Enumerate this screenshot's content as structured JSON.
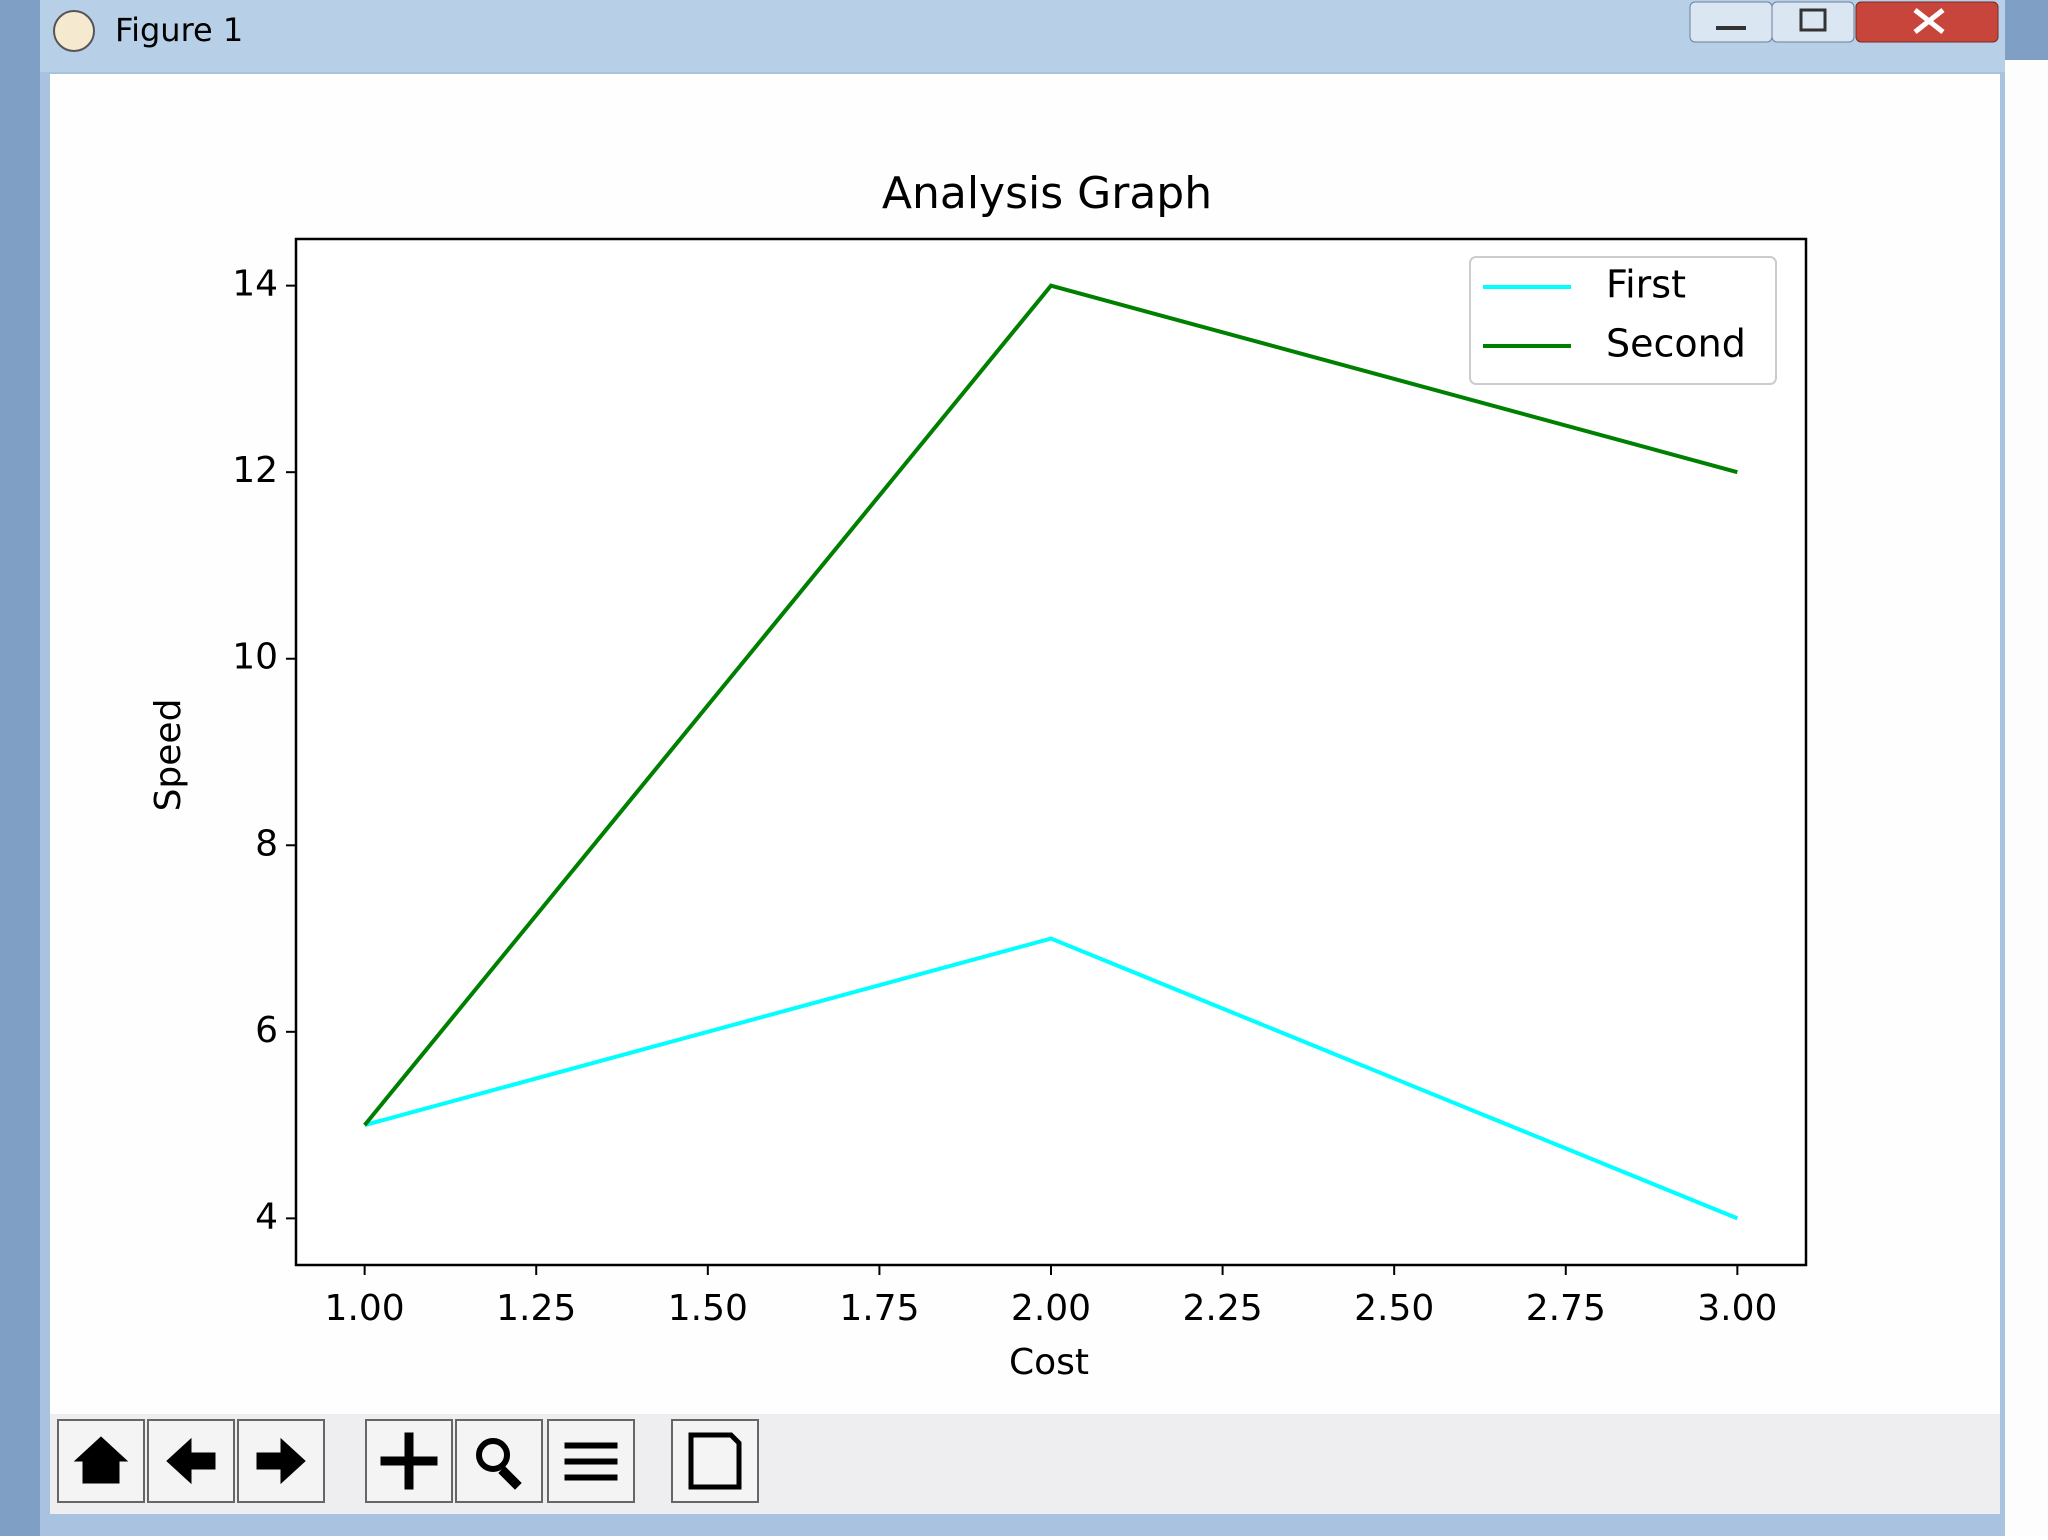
{
  "window": {
    "title": "Figure 1"
  },
  "chart_data": {
    "type": "line",
    "title": "Analysis Graph",
    "x_label": "Cost",
    "y_label": "Speed",
    "x": [
      1,
      2,
      3
    ],
    "series": [
      {
        "name": "First",
        "color": "#00ffff",
        "values": [
          5,
          7,
          4
        ]
      },
      {
        "name": "Second",
        "color": "#008000",
        "values": [
          5,
          14,
          12
        ]
      }
    ],
    "xlim": [
      0.9,
      3.1
    ],
    "xticks": [
      {
        "value": 1,
        "label": "1.00"
      },
      {
        "value": 1.25,
        "label": "1.25"
      },
      {
        "value": 1.5,
        "label": "1.50"
      },
      {
        "value": 1.75,
        "label": "1.75"
      },
      {
        "value": 2,
        "label": "2.00"
      },
      {
        "value": 2.25,
        "label": "2.25"
      },
      {
        "value": 2.5,
        "label": "2.50"
      },
      {
        "value": 2.75,
        "label": "2.75"
      },
      {
        "value": 3,
        "label": "3.00"
      }
    ],
    "ylim": [
      3.5,
      14.5
    ],
    "yticks": [
      4,
      6,
      8,
      10,
      12,
      14
    ],
    "grid": false,
    "legend": "upper right"
  }
}
